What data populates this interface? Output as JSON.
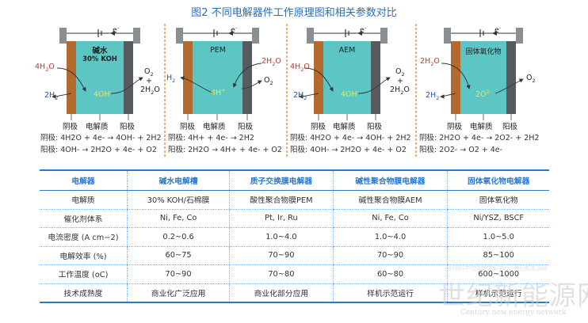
{
  "title": "图2 不同电解器件工作原理图和相关参数对比",
  "colors": {
    "electrolyte": "#5bc6c4",
    "cathode": "#b36a2e",
    "anode": "#575b60",
    "accent": "#2e78c8",
    "divider": "#e07b2a"
  },
  "cells": [
    {
      "electrolyte_label_1": "碱水",
      "electrolyte_label_2": "30% KOH",
      "ion": "4OH",
      "ion_charge": "-",
      "left_in": "4H",
      "left_in_sub": "2",
      "left_in_tail": "O",
      "left_out": "2H",
      "left_out_sub": "2",
      "right_out_1": "O",
      "right_out_1_sub": "2",
      "right_plus": "+",
      "right_out_2": "2H",
      "right_out_2_sub": "2",
      "right_out_2_tail": "O",
      "electron": "e",
      "electron_sup": "-",
      "cap_cathode": "阴极",
      "cap_electrolyte": "电解质",
      "cap_anode": "阳极",
      "eq_cathode": "阴极: 4H2O + 4e- → 4OH- + 2H2",
      "eq_anode": "阳极: 4OH- → 2H2O + 4e- + O2"
    },
    {
      "electrolyte_label_1": "PEM",
      "ion": "4H",
      "ion_charge": "+",
      "left_out": "H",
      "left_out_sub": "2",
      "right_in": "2H",
      "right_in_sub": "2",
      "right_in_tail": "O",
      "right_out_1": "O",
      "right_out_1_sub": "2",
      "electron": "e",
      "electron_sup": "-",
      "cap_cathode": "阴极",
      "cap_electrolyte": "电解质",
      "cap_anode": "阳极",
      "eq_cathode": "阴极: 4H+ + 4e- → 2H2",
      "eq_anode": "阳极: 2H2O → 4H+ + 4e- + O2"
    },
    {
      "electrolyte_label_1": "AEM",
      "ion": "4OH",
      "ion_charge": "-",
      "left_in": "4H",
      "left_in_sub": "2",
      "left_in_tail": "O",
      "left_out": "2H",
      "left_out_sub": "2",
      "right_out_1": "O",
      "right_out_1_sub": "2",
      "right_plus": "+",
      "right_out_2": "2H",
      "right_out_2_sub": "2",
      "right_out_2_tail": "O",
      "electron": "e",
      "electron_sup": "-",
      "cap_cathode": "阴极",
      "cap_electrolyte": "电解质",
      "cap_anode": "阳极",
      "eq_cathode": "阴极: 4H2O + 4e- → 4OH- + 2H2",
      "eq_anode": "阳极: 4OH- → 2H2O + 4e- + O2"
    },
    {
      "electrolyte_label_1": "固体氧化物",
      "ion": "2O",
      "ion_charge": "2-",
      "left_in": "2H",
      "left_in_sub": "2",
      "left_in_tail": "O",
      "left_out": "2H",
      "left_out_sub": "2",
      "right_out_1": "O",
      "right_out_1_sub": "2",
      "electron": "e",
      "electron_sup": "-",
      "cap_cathode": "阴极",
      "cap_electrolyte": "电解质",
      "cap_anode": "阳极",
      "eq_cathode": "阴极: 2H2O + 4e- → 2O2- + 2H2",
      "eq_anode": "阳极: 2O2- → O2 + 4e-"
    }
  ],
  "table": {
    "headers": [
      "电解器",
      "碱水电解槽",
      "质子交换膜电解器",
      "碱性聚合物膜电解器",
      "固体氧化物电解器"
    ],
    "rows": [
      [
        "电解质",
        "30% KOH/石棉膜",
        "酸性聚合物膜PEM",
        "碱性聚合物膜AEM",
        "固体氧化物"
      ],
      [
        "催化剂体系",
        "Ni, Fe, Co",
        "Pt, Ir, Ru",
        "Ni, Fe, Co",
        "Ni/YSZ, BSCF"
      ],
      [
        "电流密度 (A cm−2)",
        "0.2~0.6",
        "1.0~4.0",
        "1.0~4.0",
        "1.0~5.0"
      ],
      [
        "电解效率 (%)",
        "60~75",
        "70~90",
        "70~90",
        "85~100"
      ],
      [
        "工作温度 (oC)",
        "70~90",
        "70~80",
        "60~80",
        "600~1000"
      ],
      [
        "技术成熟度",
        "商业化广泛应用",
        "商业化部分应用",
        "样机示范运行",
        "样机示范运行"
      ]
    ]
  },
  "watermark": {
    "top_text": "中国科学院文献情报中心 · 世纪新能源网",
    "cn_text": "世纪新能源网",
    "en_text": "Century new energy network"
  }
}
